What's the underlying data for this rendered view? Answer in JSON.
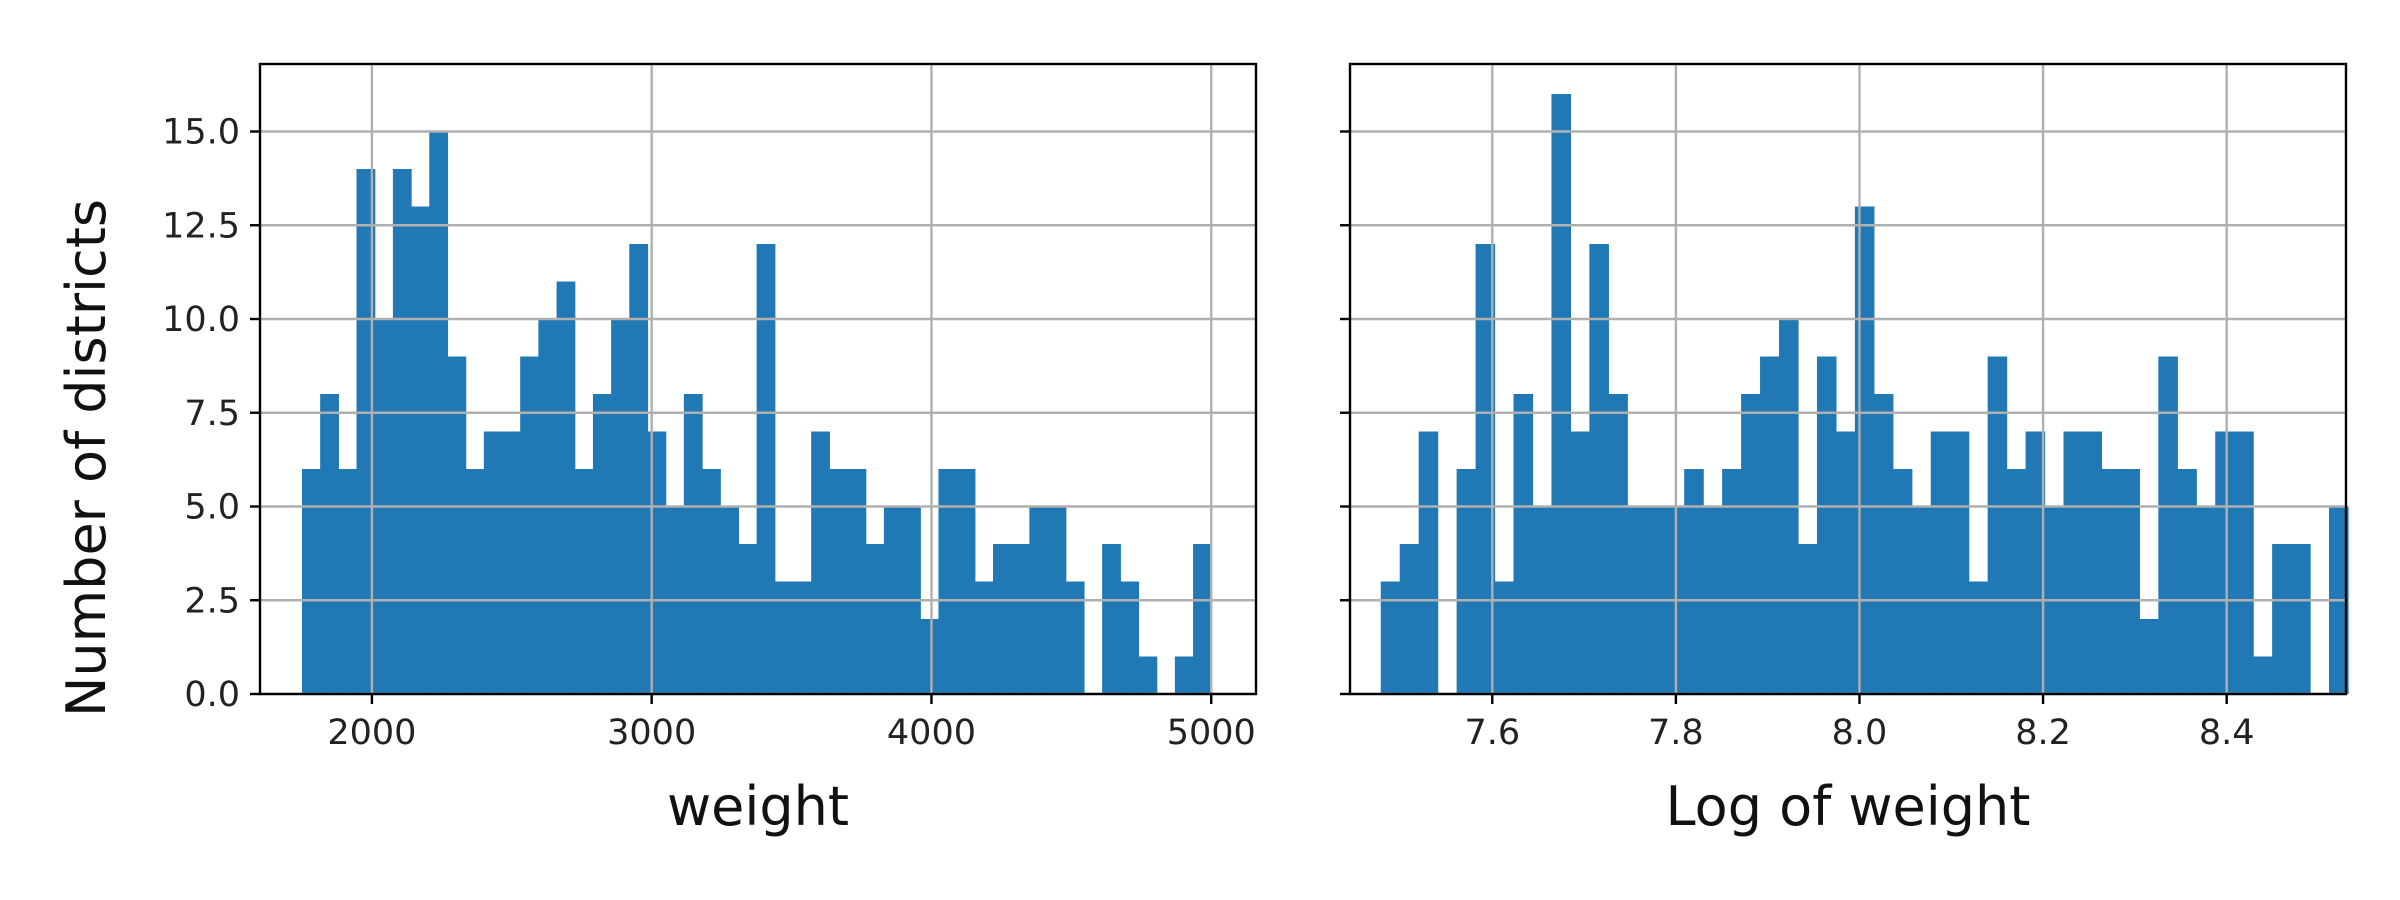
{
  "chart_data": [
    {
      "type": "bar",
      "xlabel": "weight",
      "ylabel": "Number of districts",
      "xlim": [
        1600,
        5160
      ],
      "ylim": [
        0,
        16.8
      ],
      "xticks": [
        "2000",
        "3000",
        "4000",
        "5000"
      ],
      "yticks": [
        "0.0",
        "2.5",
        "5.0",
        "7.5",
        "10.0",
        "12.5",
        "15.0"
      ],
      "grid": true,
      "bar_color": "#2078b4",
      "bin_start": 1750,
      "bin_width": 65,
      "counts": [
        6,
        8,
        6,
        14,
        10,
        14,
        13,
        15,
        9,
        6,
        7,
        7,
        9,
        10,
        11,
        6,
        8,
        10,
        12,
        7,
        5,
        8,
        6,
        5,
        4,
        12,
        3,
        3,
        7,
        6,
        6,
        4,
        5,
        5,
        2,
        6,
        6,
        3,
        4,
        4,
        5,
        5,
        3,
        0,
        4,
        3,
        1,
        0,
        1,
        4
      ]
    },
    {
      "type": "bar",
      "xlabel": "Log of weight",
      "ylabel": "",
      "xlim": [
        7.445,
        8.53
      ],
      "ylim": [
        0,
        16.8
      ],
      "xticks": [
        "7.6",
        "7.8",
        "8.0",
        "8.2",
        "8.4"
      ],
      "grid": true,
      "bar_color": "#2078b4",
      "bin_start": 7.4785,
      "bin_width": 0.02066,
      "counts": [
        3,
        4,
        7,
        0,
        6,
        12,
        3,
        8,
        5,
        16,
        7,
        12,
        8,
        5,
        5,
        5,
        6,
        5,
        6,
        8,
        9,
        10,
        4,
        9,
        7,
        13,
        8,
        6,
        5,
        7,
        7,
        3,
        9,
        6,
        7,
        5,
        7,
        7,
        6,
        6,
        2,
        9,
        6,
        5,
        7,
        7,
        1,
        4,
        4,
        0,
        5
      ]
    }
  ]
}
